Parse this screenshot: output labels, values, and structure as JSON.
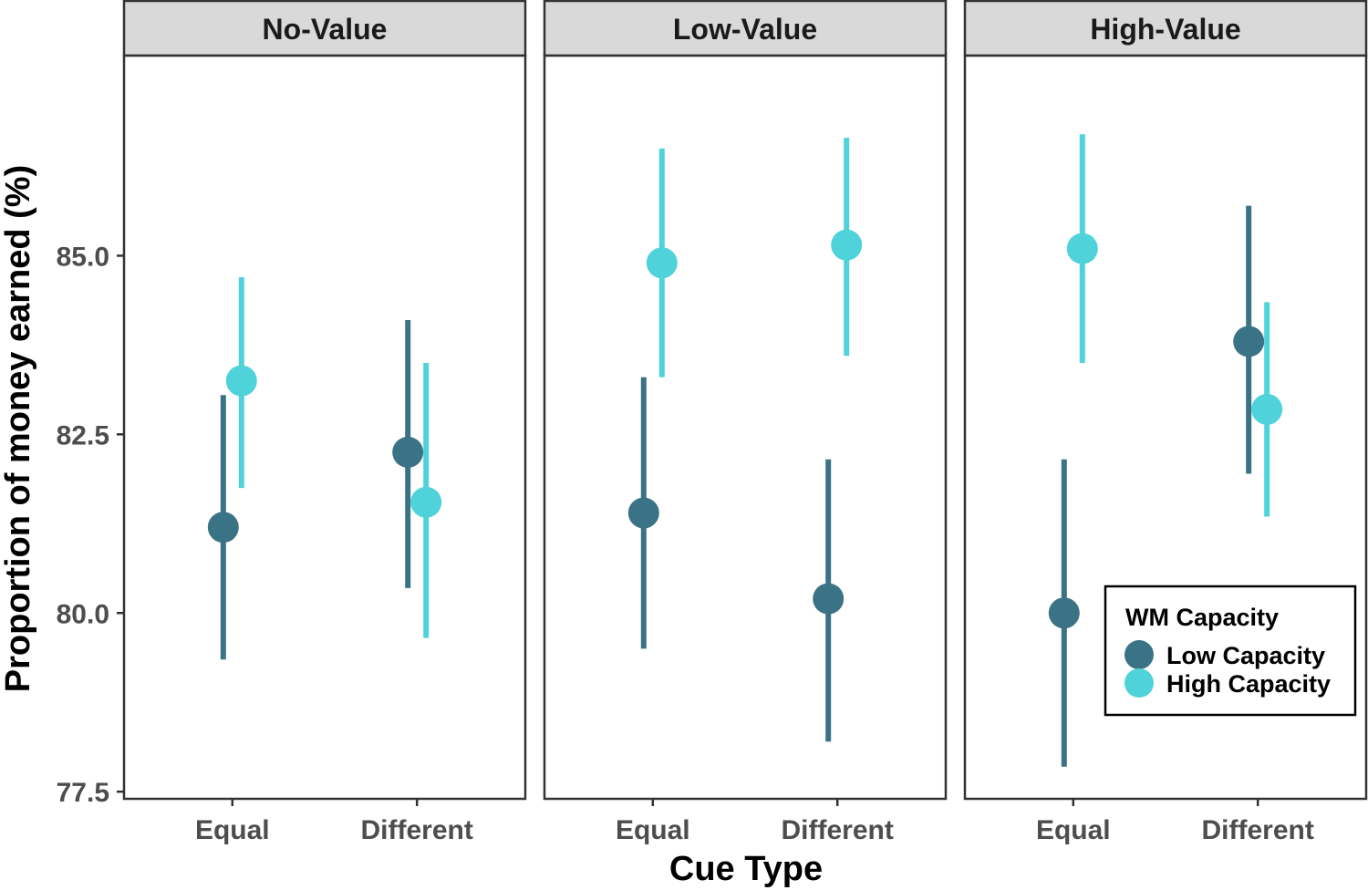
{
  "chart_data": {
    "type": "scatter",
    "subtype": "point-range (mean with error bars), faceted",
    "xlabel": "Cue Type",
    "ylabel": "Proportion of money earned (%)",
    "ylim": [
      77.4,
      87.8
    ],
    "yticks": [
      "77.5",
      "80.0",
      "82.5",
      "85.0"
    ],
    "yticks_values": [
      77.5,
      80.0,
      82.5,
      85.0
    ],
    "categories": [
      "Equal",
      "Different"
    ],
    "grid": false,
    "legend": {
      "title": "WM Capacity",
      "position": "bottom-right (inside last panel)",
      "entries": [
        {
          "name": "Low Capacity",
          "color": "#3b7386"
        },
        {
          "name": "High Capacity",
          "color": "#4fd2da"
        }
      ]
    },
    "panels": [
      {
        "title": "No-Value",
        "series": [
          {
            "name": "Low Capacity",
            "color": "#3b7386",
            "points": [
              {
                "category": "Equal",
                "mean": 81.2,
                "lower": 79.35,
                "upper": 83.05
              },
              {
                "category": "Different",
                "mean": 82.25,
                "lower": 80.35,
                "upper": 84.1
              }
            ]
          },
          {
            "name": "High Capacity",
            "color": "#4fd2da",
            "points": [
              {
                "category": "Equal",
                "mean": 83.25,
                "lower": 81.75,
                "upper": 84.7
              },
              {
                "category": "Different",
                "mean": 81.55,
                "lower": 79.65,
                "upper": 83.5
              }
            ]
          }
        ]
      },
      {
        "title": "Low-Value",
        "series": [
          {
            "name": "Low Capacity",
            "color": "#3b7386",
            "points": [
              {
                "category": "Equal",
                "mean": 81.4,
                "lower": 79.5,
                "upper": 83.3
              },
              {
                "category": "Different",
                "mean": 80.2,
                "lower": 78.2,
                "upper": 82.15
              }
            ]
          },
          {
            "name": "High Capacity",
            "color": "#4fd2da",
            "points": [
              {
                "category": "Equal",
                "mean": 84.9,
                "lower": 83.3,
                "upper": 86.5
              },
              {
                "category": "Different",
                "mean": 85.15,
                "lower": 83.6,
                "upper": 86.65
              }
            ]
          }
        ]
      },
      {
        "title": "High-Value",
        "series": [
          {
            "name": "Low Capacity",
            "color": "#3b7386",
            "points": [
              {
                "category": "Equal",
                "mean": 80.0,
                "lower": 77.85,
                "upper": 82.15
              },
              {
                "category": "Different",
                "mean": 83.8,
                "lower": 81.95,
                "upper": 85.7
              }
            ]
          },
          {
            "name": "High Capacity",
            "color": "#4fd2da",
            "points": [
              {
                "category": "Equal",
                "mean": 85.1,
                "lower": 83.5,
                "upper": 86.7
              },
              {
                "category": "Different",
                "mean": 82.85,
                "lower": 81.35,
                "upper": 84.35
              }
            ]
          }
        ]
      }
    ]
  }
}
